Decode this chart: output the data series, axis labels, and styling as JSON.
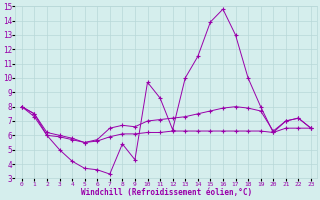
{
  "xlabel": "Windchill (Refroidissement éolien,°C)",
  "x_hours": [
    0,
    1,
    2,
    3,
    4,
    5,
    6,
    7,
    8,
    9,
    10,
    11,
    12,
    13,
    14,
    15,
    16,
    17,
    18,
    19,
    20,
    21,
    22,
    23
  ],
  "line1": [
    8.0,
    7.5,
    6.0,
    5.0,
    4.2,
    3.7,
    3.6,
    3.3,
    5.4,
    4.3,
    9.7,
    8.6,
    6.4,
    10.0,
    11.5,
    13.9,
    14.8,
    13.0,
    10.0,
    8.0,
    6.2,
    7.0,
    7.2,
    6.5
  ],
  "line2": [
    8.0,
    7.5,
    6.2,
    6.0,
    5.8,
    5.5,
    5.7,
    6.5,
    6.7,
    6.6,
    7.0,
    7.1,
    7.2,
    7.3,
    7.5,
    7.7,
    7.9,
    8.0,
    7.9,
    7.7,
    6.3,
    7.0,
    7.2,
    6.5
  ],
  "line3": [
    8.0,
    7.3,
    6.0,
    5.9,
    5.7,
    5.5,
    5.6,
    5.9,
    6.1,
    6.1,
    6.2,
    6.2,
    6.3,
    6.3,
    6.3,
    6.3,
    6.3,
    6.3,
    6.3,
    6.3,
    6.2,
    6.5,
    6.5,
    6.5
  ],
  "ylim_min": 3,
  "ylim_max": 15,
  "yticks": [
    3,
    4,
    5,
    6,
    7,
    8,
    9,
    10,
    11,
    12,
    13,
    14,
    15
  ],
  "line_color": "#9900aa",
  "bg_color": "#d5eeed",
  "grid_color": "#b8d8d8"
}
